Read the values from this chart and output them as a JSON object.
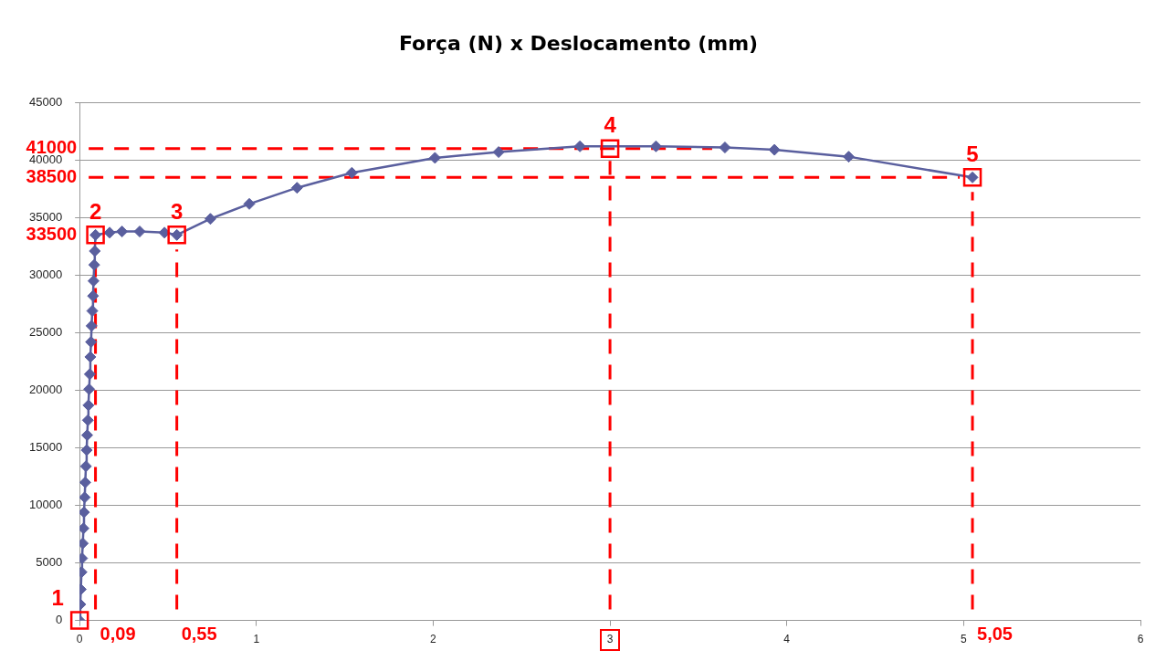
{
  "chart_data": {
    "type": "line",
    "title": "Força (N) x Deslocamento (mm)",
    "x": [
      0,
      0.004,
      0.007,
      0.011,
      0.014,
      0.018,
      0.022,
      0.025,
      0.029,
      0.032,
      0.036,
      0.04,
      0.043,
      0.047,
      0.05,
      0.054,
      0.058,
      0.061,
      0.065,
      0.068,
      0.072,
      0.076,
      0.079,
      0.083,
      0.086,
      0.09,
      0.17,
      0.24,
      0.34,
      0.48,
      0.55,
      0.74,
      0.96,
      1.23,
      1.54,
      2.01,
      2.37,
      2.83,
      3.26,
      3.65,
      3.93,
      4.35,
      5.05
    ],
    "series": [
      {
        "color": "#5a5f9e",
        "values": [
          0,
          1400,
          2700,
          4200,
          5400,
          6700,
          8000,
          9400,
          10700,
          12000,
          13400,
          14800,
          16100,
          17400,
          18700,
          20100,
          21400,
          22900,
          24200,
          25600,
          26900,
          28200,
          29500,
          30900,
          32100,
          33500,
          33700,
          33800,
          33800,
          33700,
          33500,
          34900,
          36200,
          37600,
          38900,
          40200,
          40700,
          41200,
          41200,
          41100,
          40900,
          40300,
          38500
        ]
      }
    ],
    "xlim": [
      0,
      6
    ],
    "xticks": [
      0,
      1,
      2,
      3,
      4,
      5,
      6
    ],
    "ylim": [
      0,
      45000
    ],
    "yticks": [
      0,
      5000,
      10000,
      15000,
      20000,
      25000,
      30000,
      35000,
      40000,
      45000
    ],
    "grid": "y",
    "marker": "diamond",
    "line_style": "solid",
    "legend": false,
    "ref_lines": [
      {
        "axis": "y",
        "value": 41000,
        "label": "41000",
        "color": "#ff0000",
        "line_style": "dashed"
      },
      {
        "axis": "y",
        "value": 38500,
        "label": "38500",
        "color": "#ff0000",
        "line_style": "dashed"
      },
      {
        "axis": "x",
        "value": 0.09,
        "label": "0,09",
        "color": "#ff0000",
        "line_style": "dashed"
      },
      {
        "axis": "x",
        "value": 0.55,
        "label": "0,55",
        "color": "#ff0000",
        "line_style": "dashed"
      },
      {
        "axis": "x",
        "value": 3,
        "label": null,
        "color": "#ff0000",
        "line_style": "dashed"
      },
      {
        "axis": "x",
        "value": 5.05,
        "label": "5,05",
        "color": "#ff0000",
        "line_style": "dashed"
      }
    ],
    "annotations": [
      {
        "text": "1",
        "x": 0,
        "y": 0
      },
      {
        "text": "2",
        "x": 0.09,
        "y": 33500
      },
      {
        "text": "3",
        "x": 0.55,
        "y": 33500
      },
      {
        "text": "4",
        "x": 3,
        "y": 41000
      },
      {
        "text": "5",
        "x": 5.05,
        "y": 38500
      },
      {
        "text": "33500",
        "x": 0.09,
        "y": 33500
      }
    ]
  }
}
